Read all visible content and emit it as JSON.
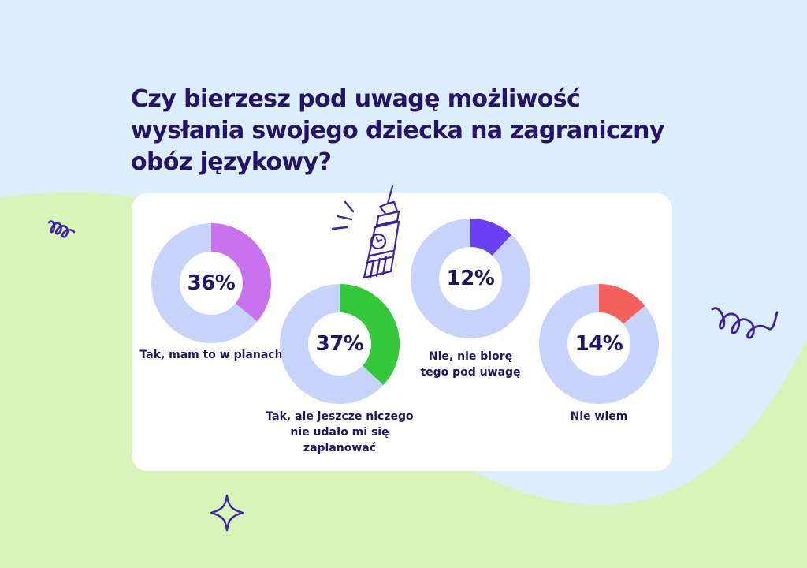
{
  "title": "Czy bierzesz pod uwagę możliwość wysłania swojego dziecka na zagraniczny obóz językowy?",
  "colors": {
    "background": "#dcedfb",
    "wave": "#d8f4b8",
    "text": "#24136b",
    "ring_base": "#c7d3fb",
    "icon_stroke": "#3b22a8"
  },
  "chart_data": {
    "type": "pie",
    "variant": "donut",
    "title": "Czy bierzesz pod uwagę możliwość wysłania swojego dziecka na zagraniczny obóz językowy?",
    "slices": [
      {
        "label": "Tak, mam to w planach",
        "value": 36,
        "value_label": "36%",
        "color": "#c872f0"
      },
      {
        "label": "Tak, ale jeszcze niczego nie udało mi się zaplanować",
        "value": 37,
        "value_label": "37%",
        "color": "#32c83a"
      },
      {
        "label": "Nie, nie biorę tego pod uwagę",
        "value": 12,
        "value_label": "12%",
        "color": "#6b3ff5"
      },
      {
        "label": "Nie wiem",
        "value": 14,
        "value_label": "14%",
        "color": "#f5605c"
      }
    ]
  },
  "icons": [
    "big-ben-icon",
    "squiggle-left-icon",
    "squiggle-right-icon",
    "sparkle-icon"
  ]
}
